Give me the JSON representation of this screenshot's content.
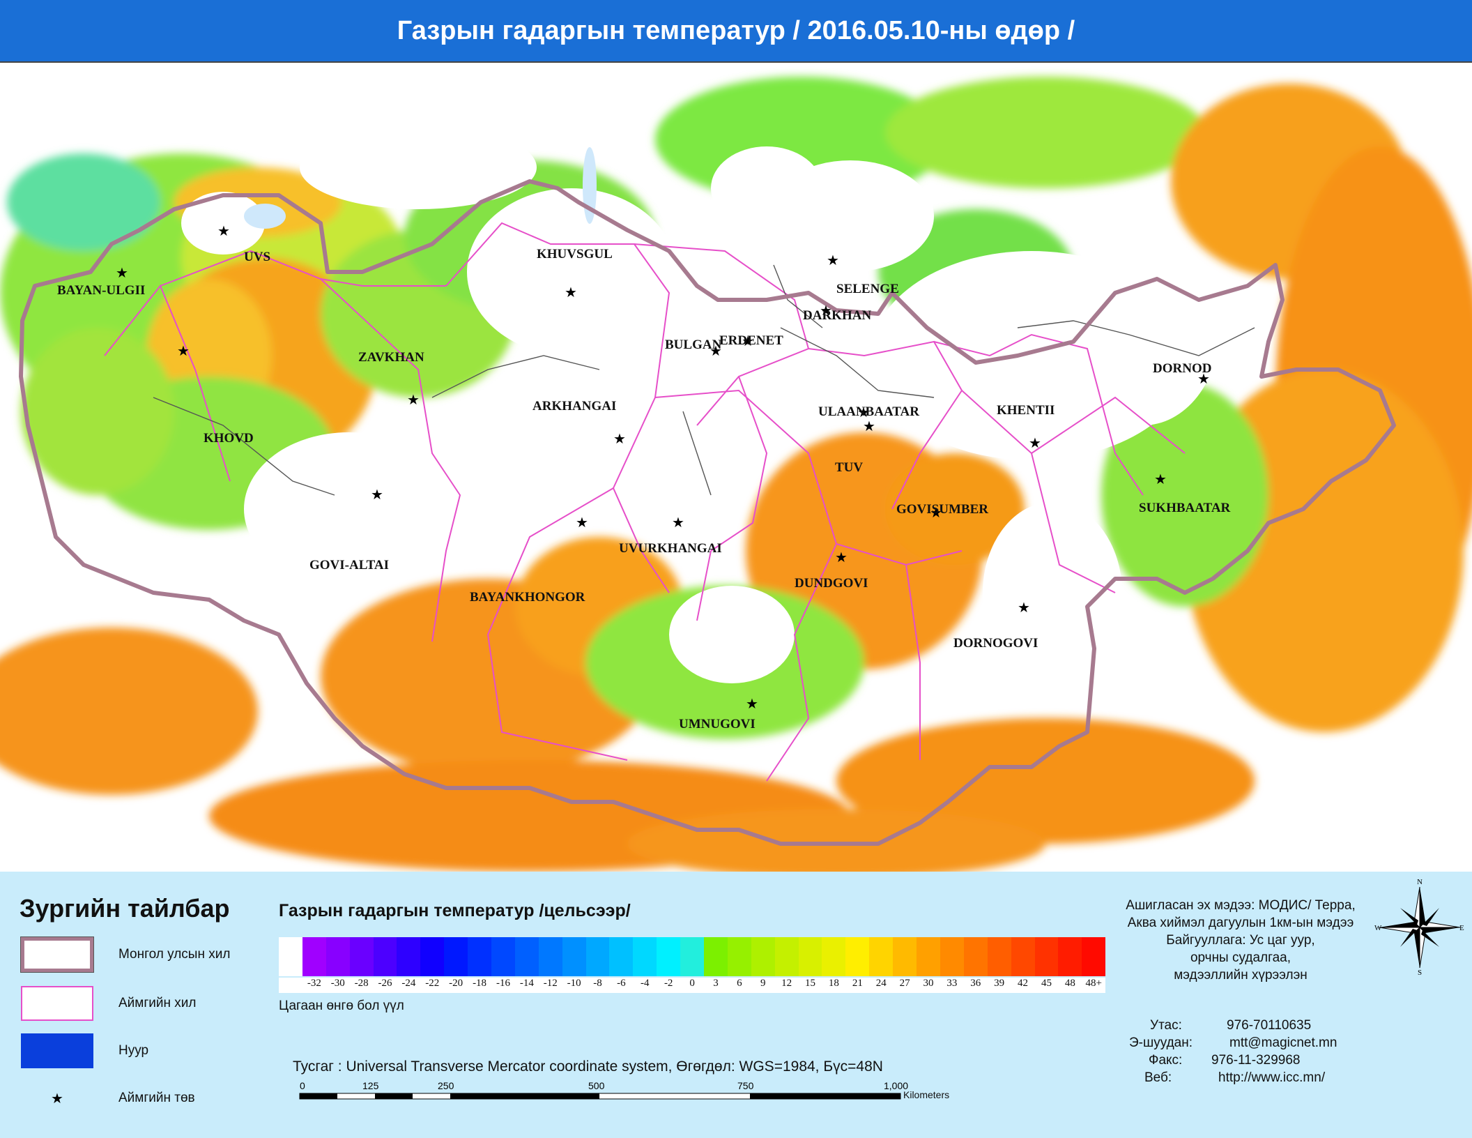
{
  "header": {
    "title": "Газрын гадаргын температур / 2016.05.10-ны өдөр /"
  },
  "map": {
    "aimag_labels": [
      "UVS",
      "BAYAN-ULGII",
      "KHOVD",
      "ZAVKHAN",
      "GOVI-ALTAI",
      "KHUVSGUL",
      "ARKHANGAI",
      "BAYANKHONGOR",
      "UVURKHANGAI",
      "BULGAN",
      "ERDENET",
      "SELENGE",
      "DARKHAN",
      "ULAANBAATAR",
      "TUV",
      "KHENTII",
      "DORNOD",
      "GOVISUMBER",
      "SUKHBAATAR",
      "DUNDGOVI",
      "DORNOGOVI",
      "UMNUGOVI"
    ],
    "colors": {
      "country_border": "#a77a8f",
      "aimag_border": "#e64fc9",
      "hot": "#f59a16",
      "warm": "#fbc02d",
      "mild": "#7de843",
      "cool": "#1fd7ea"
    }
  },
  "legend": {
    "title": "Зургийн тайлбар",
    "items": [
      {
        "label": "Монгол улсын хил",
        "type": "country-border"
      },
      {
        "label": "Аймгийн хил",
        "type": "aimag-border"
      },
      {
        "label": "Нуур",
        "type": "lake"
      },
      {
        "label": "Аймгийн төв",
        "type": "center"
      }
    ],
    "scale_title": "Газрын гадаргын температур /цельсээр/",
    "scale_labels": [
      "",
      "-32",
      "-30",
      "-28",
      "-26",
      "-24",
      "-22",
      "-20",
      "-18",
      "-16",
      "-14",
      "-12",
      "-10",
      "-8",
      "-6",
      "-4",
      "-2",
      "0",
      "3",
      "6",
      "9",
      "12",
      "15",
      "18",
      "21",
      "24",
      "27",
      "30",
      "33",
      "36",
      "39",
      "42",
      "45",
      "48",
      "48+"
    ],
    "scale_colors": [
      "#ffffff",
      "#a000ff",
      "#8800ff",
      "#6a00ff",
      "#4c00ff",
      "#2e00ff",
      "#1000ff",
      "#0018ff",
      "#0030ff",
      "#0048ff",
      "#0060ff",
      "#0078ff",
      "#0090ff",
      "#00a8ff",
      "#00c0ff",
      "#00d8ff",
      "#00f0ff",
      "#22eedd",
      "#7cf000",
      "#96f000",
      "#aef000",
      "#c4f000",
      "#d8f000",
      "#eaf000",
      "#ffee00",
      "#ffd400",
      "#ffba00",
      "#ffa000",
      "#ff8a00",
      "#ff7400",
      "#ff5e00",
      "#ff4800",
      "#ff3200",
      "#ff1c00",
      "#ff0a00"
    ],
    "white_note": "Цагаан өнгө бол үүл",
    "projection": "Тусгаг : Universal Transverse Mercator coordinate system, Өгөгдөл: WGS=1984, Бүс=48N",
    "scalebar_ticks": [
      "0",
      "125",
      "250",
      "500",
      "750",
      "1,000"
    ],
    "scalebar_unit": "Kilometers",
    "source_lines": [
      "Ашигласан эх мэдээ: МОДИС/ Терра,",
      "Аква хиймэл дагуулын 1км-ын мэдээ",
      "Байгууллага: Ус цаг уур,",
      "орчны судалгаа,",
      "мэдээллийн хүрээлэн"
    ],
    "contact": {
      "phone_label": "Утас:",
      "phone": "976-70110635",
      "email_label": "Э-шуудан:",
      "email": "mtt@magicnet.mn",
      "fax_label": "Факс:",
      "fax": "976-11-329968",
      "web_label": "Веб:",
      "web": "http://www.icc.mn/"
    },
    "compass": {
      "n": "N",
      "e": "E",
      "s": "S",
      "w": "W"
    }
  }
}
